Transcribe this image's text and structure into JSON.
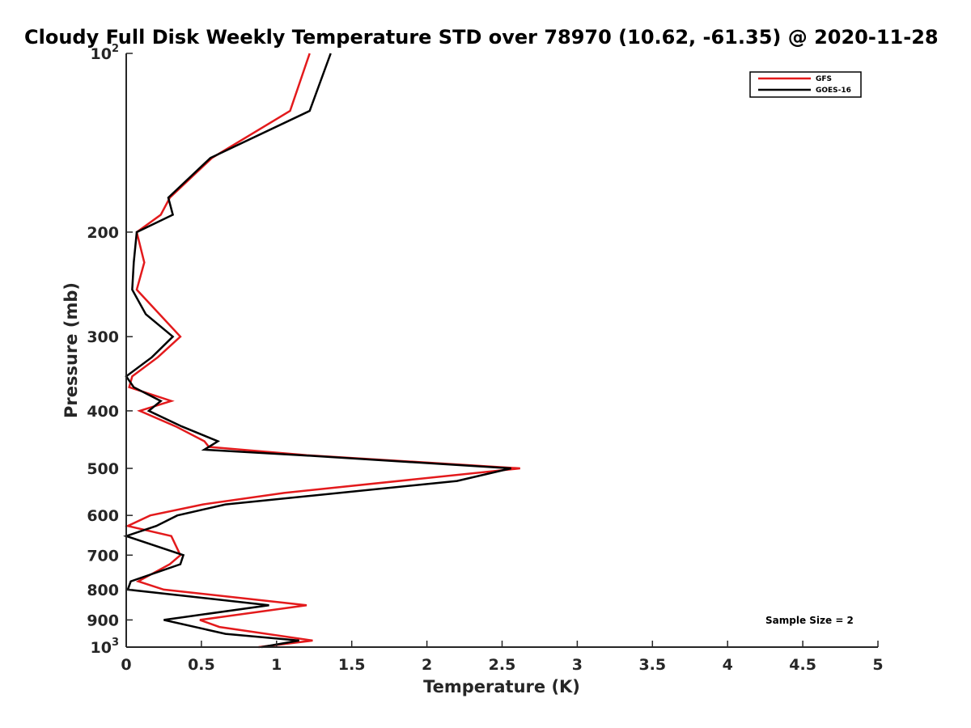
{
  "chart_data": {
    "type": "line",
    "title": "Cloudy Full Disk Weekly Temperature STD over 78970 (10.62, -61.35) @ 2020-11-28",
    "xlabel": "Temperature (K)",
    "ylabel": "Pressure (mb)",
    "xlim": [
      0,
      5
    ],
    "ylim": [
      100,
      1000
    ],
    "y_scale": "log",
    "y_reversed": true,
    "grid": false,
    "legend_position": "top-right",
    "x_ticks": [
      {
        "value": 0,
        "label": "0"
      },
      {
        "value": 0.5,
        "label": "0.5"
      },
      {
        "value": 1,
        "label": "1"
      },
      {
        "value": 1.5,
        "label": "1.5"
      },
      {
        "value": 2,
        "label": "2"
      },
      {
        "value": 2.5,
        "label": "2.5"
      },
      {
        "value": 3,
        "label": "3"
      },
      {
        "value": 3.5,
        "label": "3.5"
      },
      {
        "value": 4,
        "label": "4"
      },
      {
        "value": 4.5,
        "label": "4.5"
      },
      {
        "value": 5,
        "label": "5"
      }
    ],
    "y_ticks": [
      {
        "value": 100,
        "base": "10",
        "sup": "2"
      },
      {
        "value": 200,
        "base": "200",
        "sup": ""
      },
      {
        "value": 300,
        "base": "300",
        "sup": ""
      },
      {
        "value": 400,
        "base": "400",
        "sup": ""
      },
      {
        "value": 500,
        "base": "500",
        "sup": ""
      },
      {
        "value": 600,
        "base": "600",
        "sup": ""
      },
      {
        "value": 700,
        "base": "700",
        "sup": ""
      },
      {
        "value": 800,
        "base": "800",
        "sup": ""
      },
      {
        "value": 900,
        "base": "900",
        "sup": ""
      },
      {
        "value": 1000,
        "base": "10",
        "sup": "3"
      }
    ],
    "series": [
      {
        "name": "GFS",
        "color": "#e31a1c",
        "points": [
          {
            "p": 100,
            "t": 1.22
          },
          {
            "p": 125,
            "t": 1.09
          },
          {
            "p": 150,
            "t": 0.57
          },
          {
            "p": 175,
            "t": 0.29
          },
          {
            "p": 187,
            "t": 0.23
          },
          {
            "p": 200,
            "t": 0.07
          },
          {
            "p": 225,
            "t": 0.12
          },
          {
            "p": 250,
            "t": 0.07
          },
          {
            "p": 300,
            "t": 0.36
          },
          {
            "p": 325,
            "t": 0.21
          },
          {
            "p": 350,
            "t": 0.04
          },
          {
            "p": 365,
            "t": 0.02
          },
          {
            "p": 385,
            "t": 0.3
          },
          {
            "p": 400,
            "t": 0.09
          },
          {
            "p": 425,
            "t": 0.33
          },
          {
            "p": 450,
            "t": 0.52
          },
          {
            "p": 460,
            "t": 0.55
          },
          {
            "p": 475,
            "t": 1.2
          },
          {
            "p": 500,
            "t": 2.62
          },
          {
            "p": 550,
            "t": 1.05
          },
          {
            "p": 575,
            "t": 0.51
          },
          {
            "p": 600,
            "t": 0.16
          },
          {
            "p": 625,
            "t": 0.01
          },
          {
            "p": 650,
            "t": 0.3
          },
          {
            "p": 700,
            "t": 0.36
          },
          {
            "p": 725,
            "t": 0.29
          },
          {
            "p": 775,
            "t": 0.08
          },
          {
            "p": 800,
            "t": 0.25
          },
          {
            "p": 850,
            "t": 1.2
          },
          {
            "p": 900,
            "t": 0.49
          },
          {
            "p": 925,
            "t": 0.62
          },
          {
            "p": 975,
            "t": 1.24
          },
          {
            "p": 1000,
            "t": 0.88
          }
        ]
      },
      {
        "name": "GOES-16",
        "color": "#000000",
        "points": [
          {
            "p": 100,
            "t": 1.36
          },
          {
            "p": 125,
            "t": 1.22
          },
          {
            "p": 150,
            "t": 0.56
          },
          {
            "p": 175,
            "t": 0.28
          },
          {
            "p": 187,
            "t": 0.31
          },
          {
            "p": 200,
            "t": 0.07
          },
          {
            "p": 225,
            "t": 0.05
          },
          {
            "p": 250,
            "t": 0.04
          },
          {
            "p": 275,
            "t": 0.13
          },
          {
            "p": 300,
            "t": 0.31
          },
          {
            "p": 325,
            "t": 0.17
          },
          {
            "p": 350,
            "t": 0.0
          },
          {
            "p": 365,
            "t": 0.05
          },
          {
            "p": 385,
            "t": 0.23
          },
          {
            "p": 400,
            "t": 0.15
          },
          {
            "p": 425,
            "t": 0.37
          },
          {
            "p": 450,
            "t": 0.61
          },
          {
            "p": 465,
            "t": 0.52
          },
          {
            "p": 475,
            "t": 1.16
          },
          {
            "p": 500,
            "t": 2.56
          },
          {
            "p": 525,
            "t": 2.2
          },
          {
            "p": 575,
            "t": 0.66
          },
          {
            "p": 600,
            "t": 0.34
          },
          {
            "p": 625,
            "t": 0.2
          },
          {
            "p": 650,
            "t": 0.0
          },
          {
            "p": 700,
            "t": 0.38
          },
          {
            "p": 725,
            "t": 0.36
          },
          {
            "p": 775,
            "t": 0.03
          },
          {
            "p": 800,
            "t": 0.01
          },
          {
            "p": 850,
            "t": 0.95
          },
          {
            "p": 900,
            "t": 0.25
          },
          {
            "p": 950,
            "t": 0.66
          },
          {
            "p": 975,
            "t": 1.15
          },
          {
            "p": 1000,
            "t": 0.9
          }
        ]
      }
    ],
    "annotation": "Sample Size = 2"
  }
}
